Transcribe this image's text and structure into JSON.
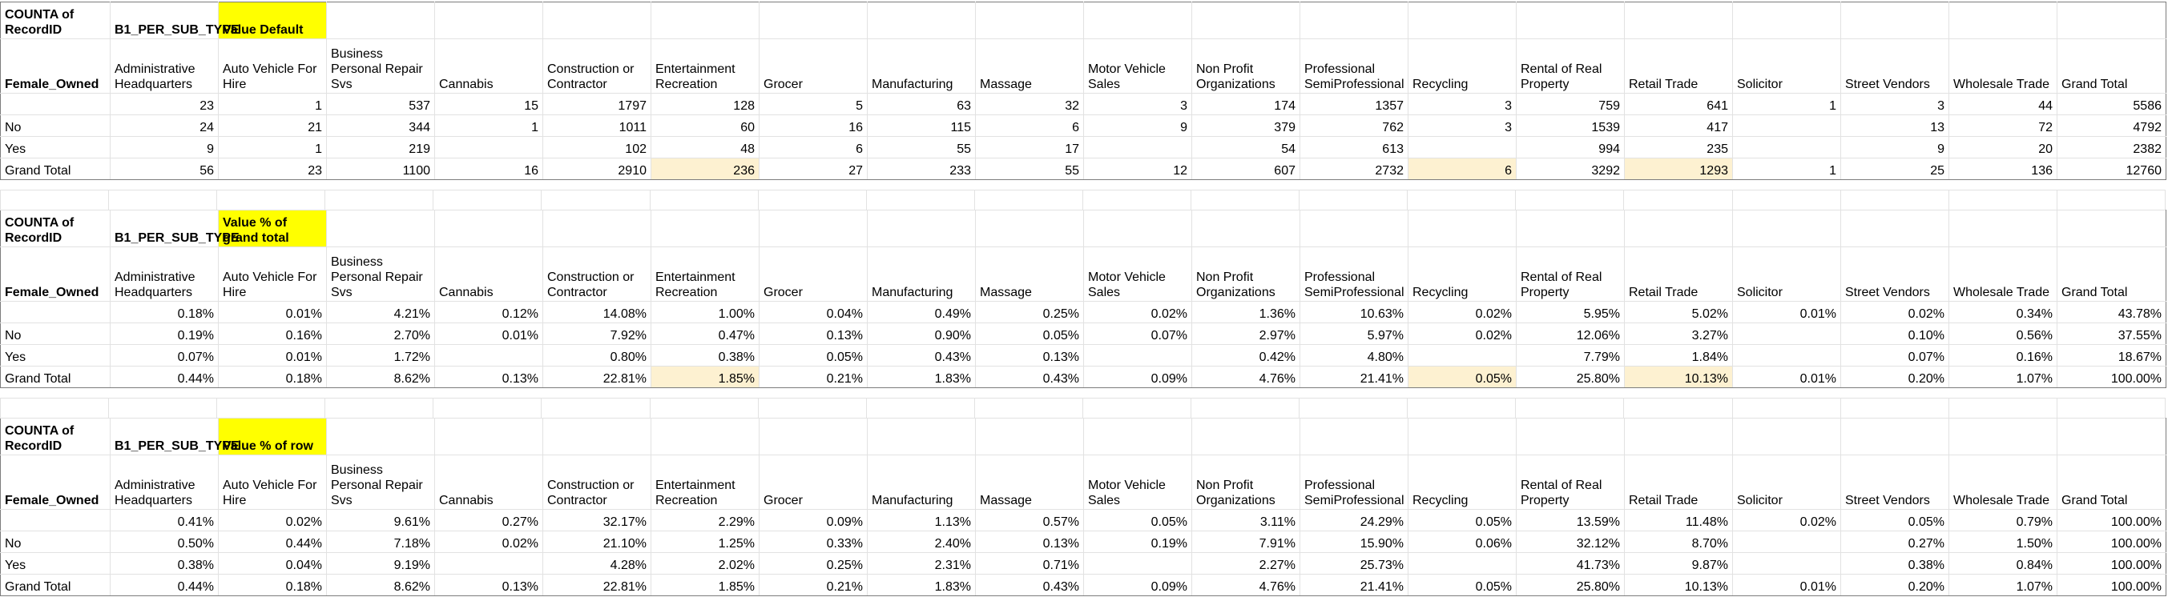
{
  "columns": [
    "Administrative Headquarters",
    "Auto Vehicle For Hire",
    "Business Personal Repair Svs",
    "Cannabis",
    "Construction or Contractor",
    "Entertainment Recreation",
    "Grocer",
    "Manufacturing",
    "Massage",
    "Motor Vehicle Sales",
    "Non Profit Organizations",
    "Professional SemiProfessional",
    "Recycling",
    "Rental of Real Property",
    "Retail Trade",
    "Solicitor",
    "Street Vendors",
    "Wholesale Trade",
    "Grand Total"
  ],
  "tables": [
    {
      "corner": "COUNTA of RecordID",
      "col_field": "B1_PER_SUB_TYPE",
      "values_label": "Value Default",
      "row_field": "Female_Owned",
      "rows": [
        {
          "label": "",
          "cells": [
            "23",
            "1",
            "537",
            "15",
            "1797",
            "128",
            "5",
            "63",
            "32",
            "3",
            "174",
            "1357",
            "3",
            "759",
            "641",
            "1",
            "3",
            "44",
            "5586"
          ]
        },
        {
          "label": "No",
          "cells": [
            "24",
            "21",
            "344",
            "1",
            "1011",
            "60",
            "16",
            "115",
            "6",
            "9",
            "379",
            "762",
            "3",
            "1539",
            "417",
            "",
            "13",
            "72",
            "4792"
          ]
        },
        {
          "label": "Yes",
          "cells": [
            "9",
            "1",
            "219",
            "",
            "102",
            "48",
            "6",
            "55",
            "17",
            "",
            "54",
            "613",
            "",
            "994",
            "235",
            "",
            "9",
            "20",
            "2382"
          ]
        },
        {
          "label": "Grand Total",
          "cells": [
            "56",
            "23",
            "1100",
            "16",
            "2910",
            "236",
            "27",
            "233",
            "55",
            "12",
            "607",
            "2732",
            "6",
            "3292",
            "1293",
            "1",
            "25",
            "136",
            "12760"
          ]
        }
      ]
    },
    {
      "corner": "COUNTA of RecordID",
      "col_field": "B1_PER_SUB_TYPE",
      "values_label": "Value % of grand total",
      "row_field": "Female_Owned",
      "rows": [
        {
          "label": "",
          "cells": [
            "0.18%",
            "0.01%",
            "4.21%",
            "0.12%",
            "14.08%",
            "1.00%",
            "0.04%",
            "0.49%",
            "0.25%",
            "0.02%",
            "1.36%",
            "10.63%",
            "0.02%",
            "5.95%",
            "5.02%",
            "0.01%",
            "0.02%",
            "0.34%",
            "43.78%"
          ]
        },
        {
          "label": "No",
          "cells": [
            "0.19%",
            "0.16%",
            "2.70%",
            "0.01%",
            "7.92%",
            "0.47%",
            "0.13%",
            "0.90%",
            "0.05%",
            "0.07%",
            "2.97%",
            "5.97%",
            "0.02%",
            "12.06%",
            "3.27%",
            "",
            "0.10%",
            "0.56%",
            "37.55%"
          ]
        },
        {
          "label": "Yes",
          "cells": [
            "0.07%",
            "0.01%",
            "1.72%",
            "",
            "0.80%",
            "0.38%",
            "0.05%",
            "0.43%",
            "0.13%",
            "",
            "0.42%",
            "4.80%",
            "",
            "7.79%",
            "1.84%",
            "",
            "0.07%",
            "0.16%",
            "18.67%"
          ]
        },
        {
          "label": "Grand Total",
          "cells": [
            "0.44%",
            "0.18%",
            "8.62%",
            "0.13%",
            "22.81%",
            "1.85%",
            "0.21%",
            "1.83%",
            "0.43%",
            "0.09%",
            "4.76%",
            "21.41%",
            "0.05%",
            "25.80%",
            "10.13%",
            "0.01%",
            "0.20%",
            "1.07%",
            "100.00%"
          ]
        }
      ]
    },
    {
      "corner": "COUNTA of RecordID",
      "col_field": "B1_PER_SUB_TYPE",
      "values_label": "Value % of row",
      "row_field": "Female_Owned",
      "rows": [
        {
          "label": "",
          "cells": [
            "0.41%",
            "0.02%",
            "9.61%",
            "0.27%",
            "32.17%",
            "2.29%",
            "0.09%",
            "1.13%",
            "0.57%",
            "0.05%",
            "3.11%",
            "24.29%",
            "0.05%",
            "13.59%",
            "11.48%",
            "0.02%",
            "0.05%",
            "0.79%",
            "100.00%"
          ]
        },
        {
          "label": "No",
          "cells": [
            "0.50%",
            "0.44%",
            "7.18%",
            "0.02%",
            "21.10%",
            "1.25%",
            "0.33%",
            "2.40%",
            "0.13%",
            "0.19%",
            "7.91%",
            "15.90%",
            "0.06%",
            "32.12%",
            "8.70%",
            "",
            "0.27%",
            "1.50%",
            "100.00%"
          ]
        },
        {
          "label": "Yes",
          "cells": [
            "0.38%",
            "0.04%",
            "9.19%",
            "",
            "4.28%",
            "2.02%",
            "0.25%",
            "2.31%",
            "0.71%",
            "",
            "2.27%",
            "25.73%",
            "",
            "41.73%",
            "9.87%",
            "",
            "0.38%",
            "0.84%",
            "100.00%"
          ]
        },
        {
          "label": "Grand Total",
          "cells": [
            "0.44%",
            "0.18%",
            "8.62%",
            "0.13%",
            "22.81%",
            "1.85%",
            "0.21%",
            "1.83%",
            "0.43%",
            "0.09%",
            "4.76%",
            "21.41%",
            "0.05%",
            "25.80%",
            "10.13%",
            "0.01%",
            "0.20%",
            "1.07%",
            "100.00%"
          ]
        }
      ]
    }
  ],
  "highlight_colors": {
    "header": "#ffff00",
    "max_cells": "#fdf1d1"
  }
}
